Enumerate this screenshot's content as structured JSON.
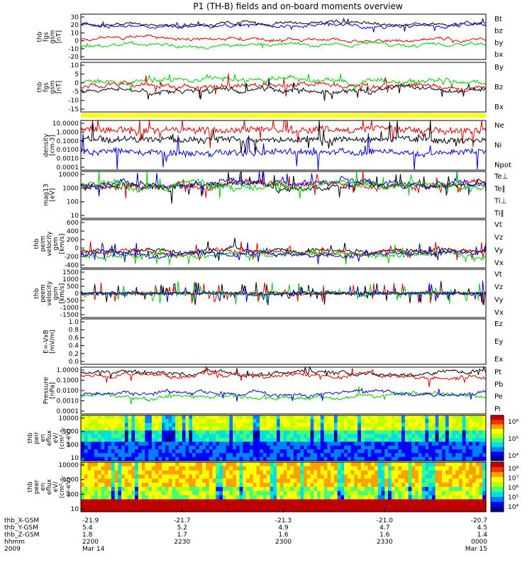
{
  "chart_data": {
    "type": "line",
    "title": "P1 (TH-B) fields and on-board moments overview",
    "panels": [
      {
        "ylabel": [
          "thb",
          "fgs",
          "gsm",
          "[nT]"
        ],
        "ticks": [
          "30",
          "20",
          "10",
          "0",
          "-10",
          "-20"
        ],
        "ylim": [
          -20,
          30
        ],
        "legend": [
          {
            "name": "Bt",
            "color": "#000000"
          },
          {
            "name": "bz",
            "color": "#d40000"
          },
          {
            "name": "by",
            "color": "#00cc00"
          },
          {
            "name": "bx",
            "color": "#0000cc"
          }
        ]
      },
      {
        "ylabel": [
          "thb",
          "fgs",
          "gsm",
          "[nT]"
        ],
        "ticks": [
          "10",
          "5",
          "0",
          "-5",
          "-10",
          "-15"
        ],
        "ylim": [
          -18,
          10
        ],
        "legend": [
          {
            "name": "By",
            "color": "#00cc00"
          },
          {
            "name": "Bz",
            "color": "#d40000"
          },
          {
            "name": "Bx",
            "color": "#000000"
          }
        ]
      },
      {
        "ylabel": [
          "density",
          "[cm-3]"
        ],
        "ticks": [
          "10.0000",
          "1.0000",
          "0.1000",
          "0.0100",
          "0.0010",
          "0.0001"
        ],
        "ylim": [
          0.0001,
          10
        ],
        "legend": [
          {
            "name": "Ne",
            "color": "#d40000"
          },
          {
            "name": "Ni",
            "color": "#000000"
          },
          {
            "name": "Npot",
            "color": "#0000cc"
          }
        ]
      },
      {
        "ylabel": [
          "mag13",
          "[eV]"
        ],
        "ticks": [
          "10000",
          "1000",
          "100",
          "10"
        ],
        "ylim": [
          5,
          10000
        ],
        "legend": [
          {
            "name": "Te⊥",
            "color": "#d40000"
          },
          {
            "name": "Te∥",
            "color": "#000000"
          },
          {
            "name": "Ti⊥",
            "color": "#0000cc"
          },
          {
            "name": "Ti∥",
            "color": "#00cc00"
          }
        ]
      },
      {
        "ylabel": [
          "thb",
          "peim",
          "velocity",
          "gsm",
          "[km/s]"
        ],
        "ticks": [
          "600",
          "400",
          "200",
          "0",
          "-200",
          "-400"
        ],
        "ylim": [
          -400,
          600
        ],
        "legend": [
          {
            "name": "Vt",
            "color": "#000000"
          },
          {
            "name": "Vz",
            "color": "#d40000"
          },
          {
            "name": "Vy",
            "color": "#00cc00"
          },
          {
            "name": "Vx",
            "color": "#0000cc"
          }
        ]
      },
      {
        "ylabel": [
          "thb",
          "peem",
          "velocity",
          "gsm",
          "[km/s]"
        ],
        "ticks": [
          "1500",
          "1000",
          "500",
          "0",
          "-500",
          "-1000",
          "-1500"
        ],
        "ylim": [
          -1500,
          1500
        ],
        "legend": [
          {
            "name": "Vt",
            "color": "#000000"
          },
          {
            "name": "Vz",
            "color": "#d40000"
          },
          {
            "name": "Vy",
            "color": "#00cc00"
          },
          {
            "name": "Vx",
            "color": "#0000cc"
          }
        ]
      },
      {
        "ylabel": [
          "E=-VxB",
          "[mV/m]"
        ],
        "ticks": [
          "1.0",
          "0.8",
          "0.6",
          "0.4",
          "0.2",
          "0.0"
        ],
        "ylim": [
          0,
          1
        ],
        "legend": [
          {
            "name": "Ez",
            "color": "#d40000"
          },
          {
            "name": "Ey",
            "color": "#00cc00"
          },
          {
            "name": "Ex",
            "color": "#0000cc"
          }
        ]
      },
      {
        "ylabel": [
          "Pressure",
          "[nPa]"
        ],
        "ticks": [
          "1.0000",
          "0.1000",
          "0.0100",
          "0.0010",
          "0.0001"
        ],
        "ylim": [
          0.0001,
          1
        ],
        "legend": [
          {
            "name": "Pt",
            "color": "#000000"
          },
          {
            "name": "Pb",
            "color": "#d40000"
          },
          {
            "name": "Pe",
            "color": "#00cc00"
          },
          {
            "name": "Pi",
            "color": "#0000cc"
          }
        ]
      },
      {
        "ylabel": [
          "thb",
          "peir",
          "en",
          "eflux",
          "eV/",
          "(cm²-s-",
          "sr-eV)"
        ],
        "ticks": [
          "10000",
          "1000",
          "100",
          "10"
        ],
        "ylim": [
          10,
          20000
        ],
        "colorbar": [
          "10⁶",
          "10⁵",
          "10⁴"
        ]
      },
      {
        "ylabel": [
          "thb",
          "peer",
          "en",
          "eflux",
          "eV/",
          "(cm²-s-",
          "sr-eV)"
        ],
        "ticks": [
          "10000",
          "1000",
          "100",
          "10"
        ],
        "ylim": [
          10,
          20000
        ],
        "colorbar": [
          "10⁸",
          "10⁷",
          "10⁶",
          "10⁵",
          "10⁴"
        ]
      }
    ],
    "xaxis": {
      "rows": [
        {
          "label": "thb_X-GSM",
          "values": [
            "-21.9",
            "-21.7",
            "-21.3",
            "-21.0",
            "-20.7"
          ]
        },
        {
          "label": "thb_Y-GSM",
          "values": [
            "5.4",
            "5.2",
            "4.9",
            "4.7",
            "4.5"
          ]
        },
        {
          "label": "thb_Z-GSM",
          "values": [
            "1.8",
            "1.7",
            "1.6",
            "1.6",
            "1.4"
          ]
        },
        {
          "label": "hhmm",
          "values": [
            "2200",
            "2230",
            "2300",
            "2330",
            "0000"
          ]
        },
        {
          "label": "2009",
          "values": [
            "Mar 14",
            "",
            "",
            "",
            "Mar 15"
          ]
        }
      ]
    }
  }
}
